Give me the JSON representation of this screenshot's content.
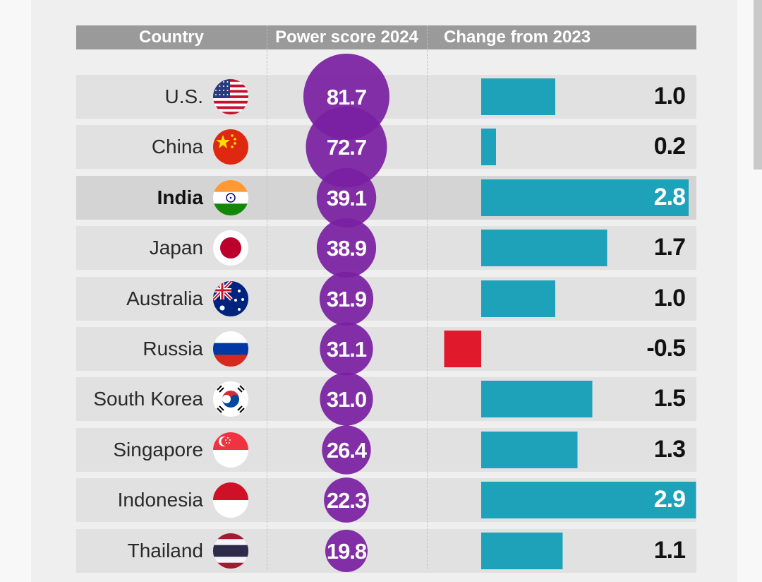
{
  "header": {
    "country": "Country",
    "power_score": "Power score 2024",
    "change": "Change from 2023"
  },
  "colors": {
    "bubble": "#7a1fa2",
    "positive_bar": "#1da2ba",
    "negative_bar": "#e0192d",
    "header_bg": "#9a9a9a"
  },
  "chart_data": {
    "type": "table",
    "title": "",
    "columns": [
      "Country",
      "Power score 2024",
      "Change from 2023"
    ],
    "rows": [
      {
        "country": "U.S.",
        "flag": "us-flag-icon",
        "score": 81.7,
        "score_label": "81.7",
        "change": 1.0,
        "change_label": "1.0"
      },
      {
        "country": "China",
        "flag": "china-flag-icon",
        "score": 72.7,
        "score_label": "72.7",
        "change": 0.2,
        "change_label": "0.2"
      },
      {
        "country": "India",
        "flag": "india-flag-icon",
        "score": 39.1,
        "score_label": "39.1",
        "change": 2.8,
        "change_label": "2.8",
        "highlight": true
      },
      {
        "country": "Japan",
        "flag": "japan-flag-icon",
        "score": 38.9,
        "score_label": "38.9",
        "change": 1.7,
        "change_label": "1.7"
      },
      {
        "country": "Australia",
        "flag": "australia-flag-icon",
        "score": 31.9,
        "score_label": "31.9",
        "change": 1.0,
        "change_label": "1.0"
      },
      {
        "country": "Russia",
        "flag": "russia-flag-icon",
        "score": 31.1,
        "score_label": "31.1",
        "change": -0.5,
        "change_label": "-0.5"
      },
      {
        "country": "South Korea",
        "flag": "south-korea-flag-icon",
        "score": 31.0,
        "score_label": "31.0",
        "change": 1.5,
        "change_label": "1.5"
      },
      {
        "country": "Singapore",
        "flag": "singapore-flag-icon",
        "score": 26.4,
        "score_label": "26.4",
        "change": 1.3,
        "change_label": "1.3"
      },
      {
        "country": "Indonesia",
        "flag": "indonesia-flag-icon",
        "score": 22.3,
        "score_label": "22.3",
        "change": 2.9,
        "change_label": "2.9"
      },
      {
        "country": "Thailand",
        "flag": "thailand-flag-icon",
        "score": 19.8,
        "score_label": "19.8",
        "change": 1.1,
        "change_label": "1.1"
      }
    ],
    "change_range": [
      -0.5,
      2.9
    ]
  }
}
